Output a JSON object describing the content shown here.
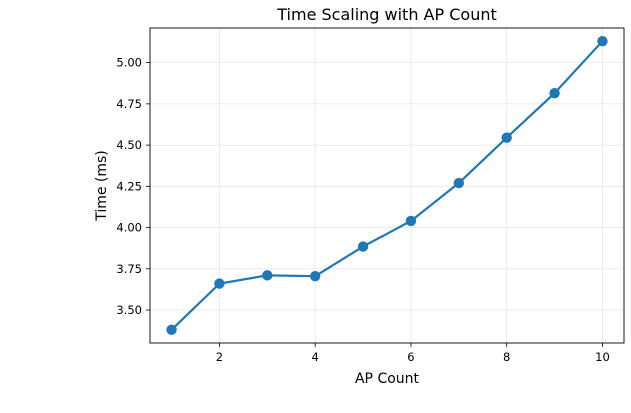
{
  "chart_data": {
    "type": "line",
    "title": "Time Scaling with AP Count",
    "xlabel": "AP Count",
    "ylabel": "Time (ms)",
    "x": [
      1,
      2,
      3,
      4,
      5,
      6,
      7,
      8,
      9,
      10
    ],
    "series": [
      {
        "values": [
          3.38,
          3.66,
          3.71,
          3.705,
          3.885,
          4.04,
          4.27,
          4.545,
          4.815,
          5.13
        ],
        "color": "#1f77b4"
      }
    ],
    "xlim": [
      0.55,
      10.45
    ],
    "ylim": [
      3.3,
      5.21
    ],
    "xticks": [
      2,
      4,
      6,
      8,
      10
    ],
    "xtick_labels": [
      "2",
      "4",
      "6",
      "8",
      "10"
    ],
    "yticks": [
      3.5,
      3.75,
      4.0,
      4.25,
      4.5,
      4.75,
      5.0
    ],
    "ytick_labels": [
      "3.50",
      "3.75",
      "4.00",
      "4.25",
      "4.50",
      "4.75",
      "5.00"
    ],
    "grid": true,
    "marker": "circle"
  }
}
